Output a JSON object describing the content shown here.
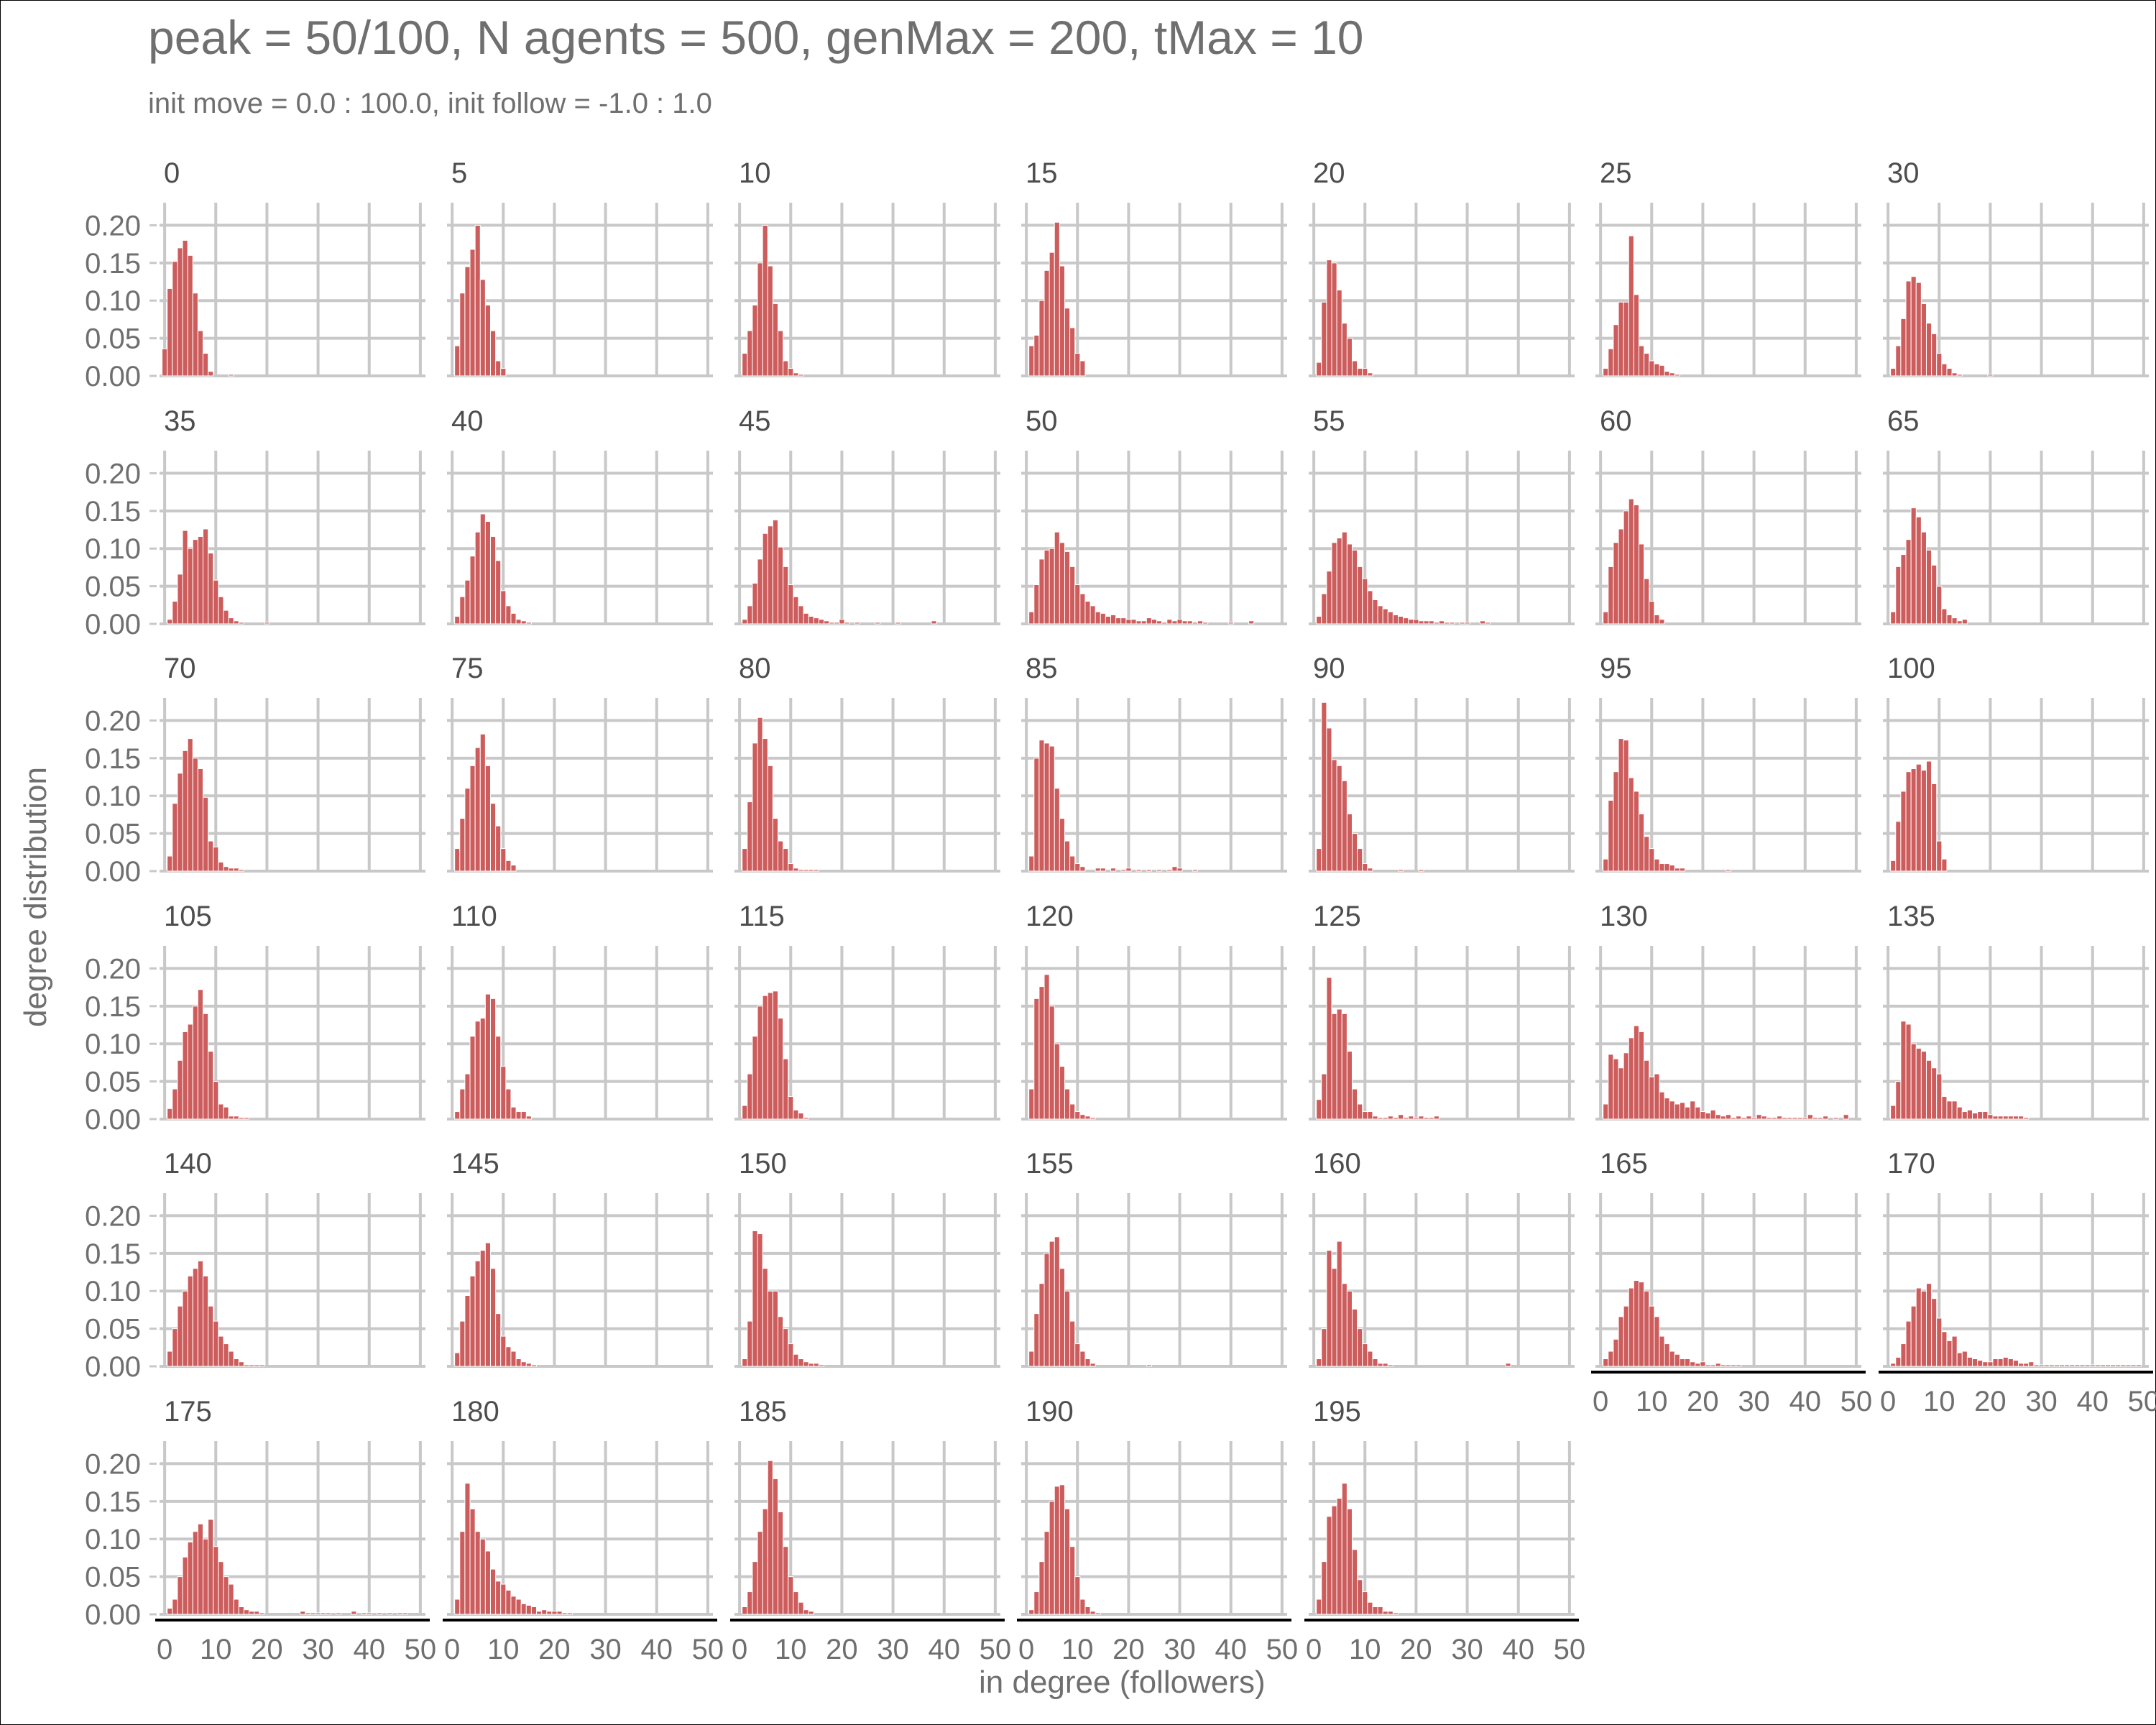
{
  "chart_data": {
    "type": "bar",
    "title": "peak =  50/100, N agents = 500, genMax = 200, tMax = 10",
    "subtitle": "init move = 0.0 : 100.0, init follow = -1.0 : 1.0",
    "xlabel": "in degree (followers)",
    "ylabel": "degree distribution",
    "xlim": [
      -1,
      51
    ],
    "ylim": [
      0,
      0.23
    ],
    "x_ticks": [
      "0",
      "10",
      "20",
      "30",
      "40",
      "50"
    ],
    "y_ticks": [
      "0.00",
      "0.05",
      "0.10",
      "0.15",
      "0.20"
    ],
    "grid": true,
    "bar_color": "#cd5c5c",
    "facets": [
      {
        "label": "0",
        "values": [
          0.036,
          0.116,
          0.152,
          0.17,
          0.18,
          0.16,
          0.11,
          0.06,
          0.03,
          0.006,
          0,
          0,
          0,
          0.002
        ]
      },
      {
        "label": "5",
        "values": [
          0,
          0.04,
          0.11,
          0.145,
          0.168,
          0.2,
          0.128,
          0.094,
          0.06,
          0.02,
          0.01
        ]
      },
      {
        "label": "10",
        "values": [
          0,
          0.03,
          0.06,
          0.094,
          0.15,
          0.2,
          0.146,
          0.096,
          0.06,
          0.02,
          0.01,
          0.004,
          0.002
        ]
      },
      {
        "label": "15",
        "values": [
          0,
          0.04,
          0.054,
          0.1,
          0.14,
          0.164,
          0.204,
          0.146,
          0.09,
          0.064,
          0.03,
          0.02
        ]
      },
      {
        "label": "20",
        "values": [
          0,
          0.018,
          0.098,
          0.154,
          0.15,
          0.114,
          0.07,
          0.05,
          0.02,
          0.01,
          0.01,
          0.004
        ]
      },
      {
        "label": "25",
        "values": [
          0,
          0.01,
          0.036,
          0.068,
          0.098,
          0.098,
          0.186,
          0.108,
          0.04,
          0.03,
          0.02,
          0.016,
          0.014,
          0.006,
          0.004,
          0.002
        ]
      },
      {
        "label": "30",
        "values": [
          0,
          0.01,
          0.04,
          0.076,
          0.126,
          0.132,
          0.124,
          0.096,
          0.07,
          0.056,
          0.03,
          0.016,
          0.01,
          0.004,
          0.002,
          0,
          0,
          0,
          0,
          0,
          0.002
        ]
      },
      {
        "label": "35",
        "values": [
          0,
          0.006,
          0.03,
          0.066,
          0.124,
          0.1,
          0.112,
          0.116,
          0.126,
          0.094,
          0.058,
          0.036,
          0.018,
          0.008,
          0.004,
          0.002,
          0,
          0,
          0,
          0,
          0.002
        ]
      },
      {
        "label": "40",
        "values": [
          0,
          0.01,
          0.036,
          0.058,
          0.09,
          0.122,
          0.146,
          0.136,
          0.116,
          0.084,
          0.044,
          0.024,
          0.014,
          0.006,
          0.004,
          0.002
        ]
      },
      {
        "label": "45",
        "values": [
          0,
          0.006,
          0.024,
          0.054,
          0.086,
          0.12,
          0.13,
          0.138,
          0.102,
          0.076,
          0.052,
          0.036,
          0.024,
          0.014,
          0.01,
          0.008,
          0.006,
          0.004,
          0.002,
          0.002,
          0.006,
          0.002,
          0,
          0.002,
          0,
          0,
          0,
          0.002,
          0,
          0,
          0,
          0.002,
          0,
          0,
          0,
          0,
          0,
          0,
          0.004
        ]
      },
      {
        "label": "50",
        "values": [
          0,
          0.016,
          0.052,
          0.086,
          0.098,
          0.1,
          0.122,
          0.108,
          0.096,
          0.076,
          0.052,
          0.04,
          0.03,
          0.024,
          0.016,
          0.014,
          0.01,
          0.012,
          0.008,
          0.008,
          0.006,
          0.006,
          0.004,
          0.004,
          0.008,
          0.006,
          0.004,
          0.002,
          0.006,
          0.004,
          0.006,
          0.004,
          0.004,
          0.002,
          0.004,
          0.002,
          0,
          0,
          0,
          0,
          0.002,
          0,
          0,
          0,
          0.004
        ]
      },
      {
        "label": "55",
        "values": [
          0,
          0.01,
          0.04,
          0.07,
          0.108,
          0.114,
          0.122,
          0.106,
          0.098,
          0.076,
          0.06,
          0.044,
          0.032,
          0.024,
          0.02,
          0.016,
          0.012,
          0.01,
          0.008,
          0.006,
          0.006,
          0.004,
          0.004,
          0.004,
          0.002,
          0.004,
          0.002,
          0.002,
          0,
          0.002,
          0.002,
          0,
          0,
          0.004,
          0.002
        ]
      },
      {
        "label": "60",
        "values": [
          0,
          0.016,
          0.076,
          0.108,
          0.126,
          0.15,
          0.166,
          0.158,
          0.106,
          0.06,
          0.03,
          0.012,
          0.006
        ]
      },
      {
        "label": "65",
        "values": [
          0,
          0.016,
          0.076,
          0.092,
          0.112,
          0.154,
          0.142,
          0.122,
          0.098,
          0.078,
          0.05,
          0.02,
          0.012,
          0.008,
          0.004,
          0.006
        ]
      },
      {
        "label": "70",
        "values": [
          0,
          0.02,
          0.09,
          0.13,
          0.16,
          0.176,
          0.15,
          0.136,
          0.098,
          0.04,
          0.032,
          0.012,
          0.006,
          0.004,
          0.004,
          0.002
        ]
      },
      {
        "label": "75",
        "values": [
          0,
          0.03,
          0.07,
          0.11,
          0.14,
          0.164,
          0.182,
          0.14,
          0.09,
          0.06,
          0.03,
          0.014,
          0.008
        ]
      },
      {
        "label": "80",
        "values": [
          0,
          0.03,
          0.092,
          0.17,
          0.204,
          0.176,
          0.14,
          0.07,
          0.04,
          0.03,
          0.01,
          0.004,
          0.002,
          0.002,
          0.002,
          0.002
        ]
      },
      {
        "label": "85",
        "values": [
          0,
          0.02,
          0.15,
          0.174,
          0.17,
          0.166,
          0.11,
          0.07,
          0.04,
          0.02,
          0.01,
          0.006,
          0,
          0,
          0.004,
          0.004,
          0,
          0.004,
          0,
          0.002,
          0.004,
          0,
          0.002,
          0,
          0.002,
          0,
          0.002,
          0,
          0.002,
          0.006,
          0.004,
          0,
          0,
          0.002
        ]
      },
      {
        "label": "90",
        "values": [
          0,
          0.03,
          0.224,
          0.19,
          0.148,
          0.14,
          0.12,
          0.076,
          0.05,
          0.03,
          0.01,
          0.004,
          0,
          0,
          0,
          0,
          0,
          0.002,
          0,
          0,
          0,
          0.002
        ]
      },
      {
        "label": "95",
        "values": [
          0,
          0.016,
          0.094,
          0.132,
          0.176,
          0.174,
          0.124,
          0.106,
          0.076,
          0.046,
          0.03,
          0.016,
          0.01,
          0.01,
          0.008,
          0.004,
          0.004,
          0,
          0,
          0,
          0,
          0,
          0,
          0,
          0,
          0.002
        ]
      },
      {
        "label": "100",
        "values": [
          0,
          0.014,
          0.066,
          0.106,
          0.132,
          0.136,
          0.142,
          0.134,
          0.146,
          0.116,
          0.04,
          0.016
        ]
      },
      {
        "label": "105",
        "values": [
          0,
          0.014,
          0.04,
          0.078,
          0.116,
          0.126,
          0.15,
          0.172,
          0.14,
          0.09,
          0.05,
          0.02,
          0.016,
          0.004,
          0.004,
          0.002,
          0.002
        ]
      },
      {
        "label": "110",
        "values": [
          0,
          0.01,
          0.04,
          0.06,
          0.11,
          0.13,
          0.134,
          0.166,
          0.16,
          0.11,
          0.07,
          0.04,
          0.016,
          0.01,
          0.01,
          0.004
        ]
      },
      {
        "label": "115",
        "values": [
          0,
          0.018,
          0.06,
          0.11,
          0.15,
          0.164,
          0.168,
          0.17,
          0.134,
          0.08,
          0.03,
          0.012,
          0.008,
          0.002
        ]
      },
      {
        "label": "120",
        "values": [
          0,
          0.04,
          0.16,
          0.176,
          0.192,
          0.15,
          0.1,
          0.07,
          0.04,
          0.02,
          0.01,
          0.006,
          0.004,
          0.002
        ]
      },
      {
        "label": "125",
        "values": [
          0,
          0.026,
          0.06,
          0.188,
          0.14,
          0.146,
          0.14,
          0.09,
          0.04,
          0.02,
          0.01,
          0.01,
          0.004,
          0.002,
          0.002,
          0.004,
          0.002,
          0.006,
          0.002,
          0.004,
          0.002,
          0.004,
          0.002,
          0.002,
          0.004
        ]
      },
      {
        "label": "130",
        "values": [
          0,
          0.02,
          0.086,
          0.08,
          0.068,
          0.088,
          0.108,
          0.124,
          0.116,
          0.078,
          0.056,
          0.06,
          0.036,
          0.028,
          0.024,
          0.02,
          0.022,
          0.016,
          0.024,
          0.016,
          0.01,
          0.008,
          0.012,
          0.006,
          0.004,
          0.006,
          0.002,
          0.004,
          0.002,
          0.004,
          0.002,
          0.006,
          0.004,
          0.002,
          0.002,
          0.004,
          0.002,
          0.002,
          0.002,
          0.002,
          0.002,
          0.006,
          0.002,
          0.002,
          0.004,
          0,
          0.002,
          0,
          0.006
        ]
      },
      {
        "label": "135",
        "values": [
          0,
          0.018,
          0.05,
          0.13,
          0.126,
          0.1,
          0.094,
          0.09,
          0.078,
          0.068,
          0.06,
          0.03,
          0.024,
          0.024,
          0.016,
          0.01,
          0.012,
          0.008,
          0.01,
          0.01,
          0.006,
          0.004,
          0.004,
          0.004,
          0.004,
          0.004,
          0.004,
          0.002
        ]
      },
      {
        "label": "140",
        "values": [
          0,
          0.02,
          0.05,
          0.08,
          0.1,
          0.12,
          0.13,
          0.14,
          0.12,
          0.08,
          0.06,
          0.04,
          0.03,
          0.02,
          0.01,
          0.006,
          0.002,
          0.002,
          0.002,
          0.002
        ]
      },
      {
        "label": "145",
        "values": [
          0,
          0.018,
          0.06,
          0.094,
          0.12,
          0.14,
          0.154,
          0.164,
          0.13,
          0.07,
          0.04,
          0.026,
          0.02,
          0.01,
          0.006,
          0.004,
          0.002
        ]
      },
      {
        "label": "150",
        "values": [
          0,
          0.01,
          0.06,
          0.18,
          0.176,
          0.13,
          0.1,
          0.1,
          0.066,
          0.05,
          0.03,
          0.016,
          0.01,
          0.006,
          0.004,
          0.004,
          0.002
        ]
      },
      {
        "label": "155",
        "values": [
          0,
          0.02,
          0.07,
          0.11,
          0.15,
          0.166,
          0.172,
          0.13,
          0.1,
          0.06,
          0.03,
          0.02,
          0.01,
          0.004,
          0,
          0,
          0,
          0,
          0,
          0,
          0,
          0,
          0,
          0,
          0.002
        ]
      },
      {
        "label": "160",
        "values": [
          0,
          0.01,
          0.05,
          0.154,
          0.13,
          0.166,
          0.11,
          0.1,
          0.076,
          0.05,
          0.03,
          0.02,
          0.01,
          0.004,
          0.004,
          0.002,
          0,
          0,
          0,
          0,
          0,
          0,
          0,
          0,
          0,
          0,
          0,
          0,
          0,
          0,
          0,
          0,
          0,
          0,
          0,
          0,
          0,
          0,
          0.004
        ]
      },
      {
        "label": "165",
        "values": [
          0,
          0.01,
          0.02,
          0.036,
          0.066,
          0.08,
          0.104,
          0.114,
          0.112,
          0.1,
          0.08,
          0.066,
          0.04,
          0.03,
          0.02,
          0.016,
          0.01,
          0.01,
          0.006,
          0.004,
          0.006,
          0.002,
          0.002,
          0.004,
          0.002,
          0.002,
          0.002,
          0.002
        ]
      },
      {
        "label": "170",
        "values": [
          0,
          0.004,
          0.012,
          0.03,
          0.06,
          0.08,
          0.104,
          0.1,
          0.11,
          0.09,
          0.064,
          0.046,
          0.034,
          0.04,
          0.018,
          0.02,
          0.012,
          0.01,
          0.008,
          0.006,
          0.006,
          0.01,
          0.01,
          0.012,
          0.01,
          0.008,
          0.004,
          0.004,
          0.006,
          0.002,
          0.002,
          0.002,
          0.002,
          0.002,
          0.002,
          0.002,
          0.002,
          0.002,
          0.002,
          0.002,
          0.002,
          0.002,
          0.002,
          0.002,
          0.002,
          0.002,
          0.002,
          0.002,
          0.002,
          0.002
        ]
      },
      {
        "label": "175",
        "values": [
          0,
          0.008,
          0.02,
          0.05,
          0.076,
          0.096,
          0.11,
          0.12,
          0.1,
          0.126,
          0.09,
          0.07,
          0.05,
          0.04,
          0.02,
          0.01,
          0.006,
          0.004,
          0.004,
          0.002,
          0,
          0,
          0,
          0,
          0,
          0,
          0,
          0.004,
          0.002,
          0.002,
          0.002,
          0.002,
          0.002,
          0,
          0.002,
          0,
          0,
          0.004,
          0,
          0.002,
          0.002,
          0,
          0.002,
          0,
          0.002,
          0,
          0.002,
          0.002
        ]
      },
      {
        "label": "180",
        "values": [
          0,
          0.02,
          0.11,
          0.174,
          0.14,
          0.11,
          0.1,
          0.084,
          0.06,
          0.044,
          0.04,
          0.032,
          0.024,
          0.02,
          0.014,
          0.012,
          0.01,
          0.004,
          0.006,
          0.004,
          0.004,
          0.004,
          0.002,
          0.002
        ]
      },
      {
        "label": "185",
        "values": [
          0,
          0.01,
          0.03,
          0.07,
          0.11,
          0.14,
          0.204,
          0.18,
          0.136,
          0.09,
          0.05,
          0.03,
          0.016,
          0.006,
          0.004
        ]
      },
      {
        "label": "190",
        "values": [
          0,
          0.006,
          0.03,
          0.07,
          0.11,
          0.15,
          0.17,
          0.172,
          0.14,
          0.09,
          0.05,
          0.02,
          0.01,
          0.004,
          0.002
        ]
      },
      {
        "label": "195",
        "values": [
          0,
          0.02,
          0.07,
          0.13,
          0.144,
          0.154,
          0.174,
          0.14,
          0.086,
          0.046,
          0.03,
          0.016,
          0.01,
          0.01,
          0.004,
          0.004,
          0.002
        ]
      }
    ]
  },
  "colors": {
    "text": "#6f6f6f",
    "grid": "#c8c8c8",
    "bar": "#cd5c5c",
    "bar_outline": "#ffffff",
    "axis": "#000000"
  }
}
